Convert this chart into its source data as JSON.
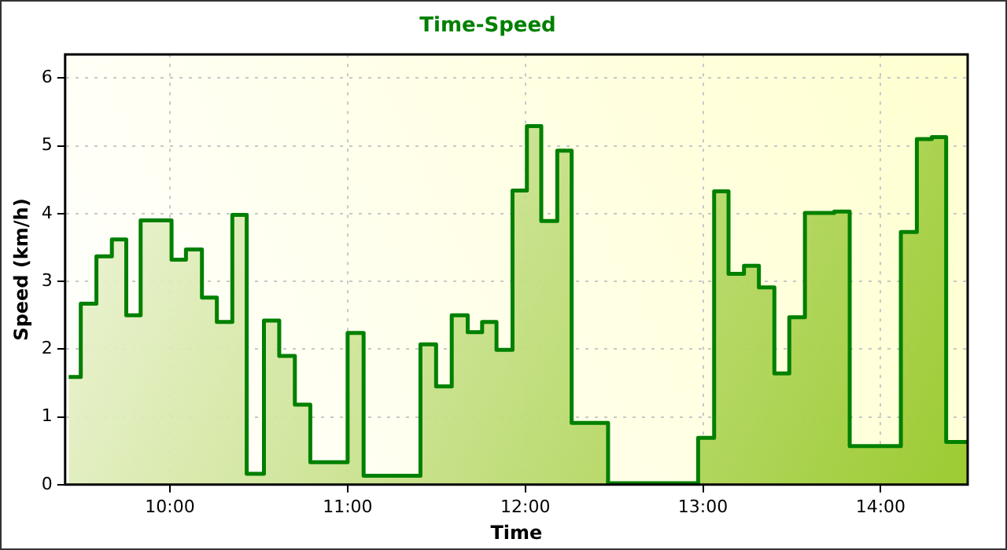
{
  "chart_data": {
    "type": "step",
    "title": "Time-Speed",
    "xlabel": "Time",
    "ylabel": "Speed (km/h)",
    "x": [
      9.43,
      9.498,
      9.586,
      9.673,
      9.754,
      9.835,
      10.009,
      10.09,
      10.18,
      10.264,
      10.351,
      10.432,
      10.529,
      10.615,
      10.703,
      10.79,
      11.0,
      11.09,
      11.41,
      11.498,
      11.586,
      11.676,
      11.757,
      11.838,
      11.928,
      12.009,
      12.09,
      12.18,
      12.261,
      12.466,
      12.973,
      13.063,
      13.144,
      13.231,
      13.315,
      13.402,
      13.486,
      13.574,
      13.739,
      13.826,
      14.114,
      14.204,
      14.288,
      14.369,
      14.49
    ],
    "series": [
      {
        "color": "#008000",
        "values": [
          1.59,
          2.67,
          3.37,
          3.62,
          2.5,
          3.9,
          3.32,
          3.47,
          2.76,
          2.4,
          3.98,
          0.16,
          2.42,
          1.9,
          1.18,
          0.33,
          2.24,
          0.13,
          2.07,
          1.45,
          2.5,
          2.25,
          2.4,
          1.99,
          4.34,
          5.29,
          3.89,
          4.93,
          0.91,
          0.02,
          0.69,
          4.33,
          3.11,
          3.23,
          2.91,
          1.64,
          2.47,
          4.01,
          4.03,
          0.57,
          3.73,
          5.1,
          5.13,
          0.63,
          0.63
        ]
      }
    ],
    "xlim": [
      9.41,
      14.49
    ],
    "xticks": [
      {
        "value": 10,
        "label": "10:00"
      },
      {
        "value": 11,
        "label": "11:00"
      },
      {
        "value": 12,
        "label": "12:00"
      },
      {
        "value": 13,
        "label": "13:00"
      },
      {
        "value": 14,
        "label": "14:00"
      }
    ],
    "ylim": [
      0,
      6.35
    ],
    "yticks": [
      0,
      1,
      2,
      3,
      4,
      5,
      6
    ],
    "grid": true,
    "legend": false
  }
}
